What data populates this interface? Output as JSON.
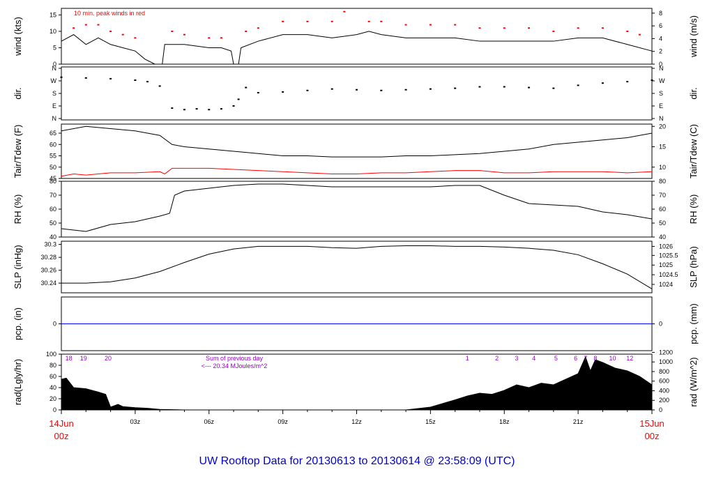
{
  "title": "UW Rooftop Data for 20130613  to  20130614 @ 23:58:09  (UTC)",
  "colors": {
    "text": "#000000",
    "red": "#ff0000",
    "blue": "#0000ff",
    "purple": "#9900cc",
    "title_blue": "#0000cc"
  },
  "time_axis": {
    "start_label_top": "14Jun",
    "start_label_bottom": "00z",
    "end_label_top": "15Jun",
    "end_label_bottom": "00z",
    "ticks": [
      {
        "hour": 3,
        "label": "03z"
      },
      {
        "hour": 6,
        "label": "06z"
      },
      {
        "hour": 9,
        "label": "09z"
      },
      {
        "hour": 12,
        "label": "12z"
      },
      {
        "hour": 15,
        "label": "15z"
      },
      {
        "hour": 18,
        "label": "18z"
      },
      {
        "hour": 21,
        "label": "21z"
      }
    ]
  },
  "chart_data": [
    {
      "type": "line",
      "id": "wind",
      "left_label": "wind (kts)",
      "right_label": "wind (m/s)",
      "annotation": "10 min. peak winds in red",
      "ylim": [
        0,
        17
      ],
      "left_ticks": [
        0,
        5,
        10,
        15
      ],
      "right_ticks": [
        {
          "label": "0",
          "value": 0
        },
        {
          "label": "2",
          "value": 3.89
        },
        {
          "label": "4",
          "value": 7.78
        },
        {
          "label": "6",
          "value": 11.66
        },
        {
          "label": "8",
          "value": 15.55
        }
      ],
      "series": [
        {
          "color": "#000000",
          "x": [
            0,
            0.5,
            1,
            1.5,
            2,
            2.5,
            3,
            3.4,
            3.8,
            4.1,
            4.2,
            5,
            6,
            6.5,
            6.9,
            7.0,
            7.2,
            7.3,
            8,
            9,
            10,
            11,
            12,
            12.5,
            13,
            14,
            15,
            16,
            17,
            18,
            19,
            20,
            21,
            22,
            23,
            24
          ],
          "y": [
            7,
            9,
            6,
            8,
            6,
            5,
            4,
            1.5,
            0,
            0,
            6,
            6,
            5,
            5,
            4,
            0,
            0,
            5,
            7,
            9,
            9,
            8,
            9,
            10,
            9,
            8,
            8,
            8,
            7,
            7,
            7,
            7,
            8,
            8,
            6,
            4
          ]
        },
        {
          "type": "scatter",
          "color": "#ff0000",
          "x": [
            0.5,
            1,
            1.5,
            2,
            2.5,
            3,
            4.5,
            5,
            6,
            6.5,
            7.5,
            8,
            9,
            10,
            11,
            11.5,
            12.5,
            13,
            14,
            15,
            16,
            17,
            18,
            19,
            20,
            21,
            22,
            23,
            23.5
          ],
          "y": [
            11,
            12,
            12,
            10,
            9,
            8,
            10,
            9,
            8,
            8,
            10,
            11,
            13,
            13,
            13,
            16,
            13,
            13,
            12,
            12,
            12,
            11,
            11,
            11,
            10,
            11,
            11,
            10,
            9
          ]
        }
      ]
    },
    {
      "type": "scatter",
      "id": "dir",
      "left_label": "dir.",
      "right_label": "dir.",
      "ylim": [
        0,
        360
      ],
      "tick_labels": [
        "N",
        "E",
        "S",
        "W",
        "N"
      ],
      "series": [
        {
          "color": "#000000",
          "x": [
            0,
            1,
            2,
            3,
            3.5,
            4,
            4.5,
            5,
            5.5,
            6,
            6.5,
            7,
            7.2,
            7.5,
            8,
            9,
            10,
            11,
            12,
            13,
            14,
            15,
            16,
            17,
            18,
            19,
            20,
            21,
            22,
            23,
            24
          ],
          "y": [
            290,
            285,
            280,
            270,
            260,
            230,
            80,
            70,
            75,
            70,
            75,
            95,
            140,
            220,
            185,
            190,
            200,
            210,
            205,
            200,
            205,
            210,
            215,
            225,
            225,
            220,
            215,
            235,
            250,
            260,
            270
          ]
        }
      ]
    },
    {
      "type": "line",
      "id": "temp",
      "left_label": "Tair/Tdew (F)",
      "right_label": "Tair/Tdew (C)",
      "ylim": [
        45,
        69
      ],
      "left_ticks": [
        45,
        50,
        55,
        60,
        65
      ],
      "right_ticks": [
        {
          "label": "10",
          "value": 50
        },
        {
          "label": "15",
          "value": 59
        },
        {
          "label": "20",
          "value": 68
        }
      ],
      "series": [
        {
          "color": "#000000",
          "x": [
            0,
            1,
            2,
            3,
            4,
            4.5,
            5,
            6,
            7,
            8,
            9,
            10,
            11,
            12,
            13,
            14,
            15,
            16,
            17,
            18,
            19,
            20,
            21,
            22,
            23,
            24
          ],
          "y": [
            66,
            68,
            67,
            66,
            64,
            60,
            59,
            58,
            57,
            56,
            55,
            55,
            54.5,
            54.5,
            54.5,
            55,
            55,
            55.5,
            56,
            57,
            58,
            60,
            61,
            62,
            63,
            65
          ]
        },
        {
          "color": "#ff0000",
          "x": [
            0,
            0.5,
            1,
            2,
            3,
            4,
            4.2,
            4.5,
            5,
            6,
            7,
            8,
            9,
            10,
            11,
            12,
            13,
            14,
            15,
            16,
            17,
            18,
            19,
            20,
            21,
            22,
            23,
            24
          ],
          "y": [
            46,
            47,
            46.5,
            47.5,
            47.5,
            48,
            47,
            49.5,
            49.5,
            49.5,
            49,
            48.5,
            48,
            47.5,
            47,
            47,
            47.5,
            47.5,
            48,
            48.5,
            48.5,
            47.5,
            47.5,
            48,
            48,
            48,
            47.5,
            48
          ]
        }
      ]
    },
    {
      "type": "line",
      "id": "rh",
      "left_label": "RH (%)",
      "right_label": "RH (%)",
      "ylim": [
        40,
        80
      ],
      "left_ticks": [
        40,
        50,
        60,
        70,
        80
      ],
      "right_ticks": [
        {
          "label": "40",
          "value": 40
        },
        {
          "label": "50",
          "value": 50
        },
        {
          "label": "60",
          "value": 60
        },
        {
          "label": "70",
          "value": 70
        },
        {
          "label": "80",
          "value": 80
        }
      ],
      "series": [
        {
          "color": "#000000",
          "x": [
            0,
            0.5,
            1,
            2,
            3,
            4,
            4.4,
            4.6,
            5,
            6,
            7,
            8,
            9,
            10,
            11,
            12,
            13,
            14,
            15,
            16,
            17,
            18,
            19,
            20,
            21,
            22,
            23,
            24
          ],
          "y": [
            46,
            45,
            44,
            49,
            51,
            55,
            57,
            70,
            73,
            75,
            77,
            78,
            78,
            77,
            76,
            76,
            76,
            76,
            76,
            77,
            77,
            70,
            64,
            63,
            62,
            58,
            56,
            53
          ]
        }
      ]
    },
    {
      "type": "line",
      "id": "slp",
      "left_label": "SLP (inHg)",
      "right_label": "SLP (hPa)",
      "ylim": [
        30.225,
        30.305
      ],
      "left_ticks": [
        30.24,
        30.26,
        30.28,
        30.3
      ],
      "right_ticks": [
        {
          "label": "1024",
          "value": 30.238
        },
        {
          "label": "1024.5",
          "value": 30.253
        },
        {
          "label": "1025",
          "value": 30.268
        },
        {
          "label": "1025.5",
          "value": 30.283
        },
        {
          "label": "1026",
          "value": 30.297
        }
      ],
      "series": [
        {
          "color": "#000000",
          "x": [
            0,
            1,
            2,
            3,
            4,
            5,
            6,
            7,
            8,
            9,
            10,
            11,
            12,
            13,
            14,
            15,
            16,
            17,
            18,
            19,
            20,
            21,
            22,
            23,
            24
          ],
          "y": [
            30.24,
            30.24,
            30.242,
            30.248,
            30.258,
            30.272,
            30.285,
            30.293,
            30.297,
            30.297,
            30.297,
            30.295,
            30.294,
            30.297,
            30.298,
            30.298,
            30.297,
            30.297,
            30.296,
            30.294,
            30.291,
            30.284,
            30.27,
            30.254,
            30.231
          ]
        }
      ]
    },
    {
      "type": "line",
      "id": "pcp",
      "left_label": "pcp. (in)",
      "right_label": "pcp. (mm)",
      "ylim": [
        -1,
        1
      ],
      "left_ticks": [
        0
      ],
      "right_ticks": [
        {
          "label": "0",
          "value": 0
        }
      ],
      "series": [
        {
          "color": "#0000ff",
          "x": [
            0,
            24
          ],
          "y": [
            0,
            0
          ]
        }
      ]
    },
    {
      "type": "area",
      "id": "rad",
      "left_label": "rad(Lgly/hr)",
      "right_label": "rad (W/m^2)",
      "ylim": [
        0,
        100
      ],
      "left_ticks": [
        0,
        20,
        40,
        60,
        80,
        100
      ],
      "right_ticks": [
        {
          "label": "0",
          "value": 0
        },
        {
          "label": "200",
          "value": 17.2
        },
        {
          "label": "400",
          "value": 34.4
        },
        {
          "label": "600",
          "value": 51.6
        },
        {
          "label": "800",
          "value": 68.8
        },
        {
          "label": "1000",
          "value": 86
        },
        {
          "label": "1200",
          "value": 103.2
        }
      ],
      "annotation_line1": "Sum of previous day",
      "annotation_line2": "<--- 20.34 MJoules/m^2",
      "sun_hours": [
        {
          "label": "18",
          "hour": 0.3
        },
        {
          "label": "19",
          "hour": 0.9
        },
        {
          "label": "20",
          "hour": 1.9
        },
        {
          "label": "1",
          "hour": 16.5
        },
        {
          "label": "2",
          "hour": 17.7
        },
        {
          "label": "3",
          "hour": 18.5
        },
        {
          "label": "4",
          "hour": 19.2
        },
        {
          "label": "5",
          "hour": 20.1
        },
        {
          "label": "6",
          "hour": 20.9
        },
        {
          "label": "7",
          "hour": 21.3
        },
        {
          "label": "8",
          "hour": 21.7
        },
        {
          "label": "10",
          "hour": 22.4
        },
        {
          "label": "12",
          "hour": 23.1
        }
      ],
      "series": [
        {
          "color": "#000000",
          "x": [
            0,
            0.2,
            0.5,
            1,
            1.5,
            1.8,
            2,
            2.3,
            2.5,
            3,
            3.5,
            4,
            5,
            14,
            15,
            16,
            16.5,
            17,
            17.5,
            18,
            18.5,
            19,
            19.5,
            20,
            20.5,
            21,
            21.3,
            21.5,
            21.7,
            22,
            22.5,
            23,
            23.5,
            24
          ],
          "y": [
            55,
            57,
            40,
            38,
            32,
            28,
            5,
            10,
            6,
            4,
            3,
            1,
            0,
            0,
            5,
            18,
            25,
            30,
            28,
            35,
            45,
            40,
            48,
            45,
            55,
            65,
            95,
            70,
            90,
            85,
            75,
            70,
            60,
            45
          ]
        }
      ]
    }
  ]
}
